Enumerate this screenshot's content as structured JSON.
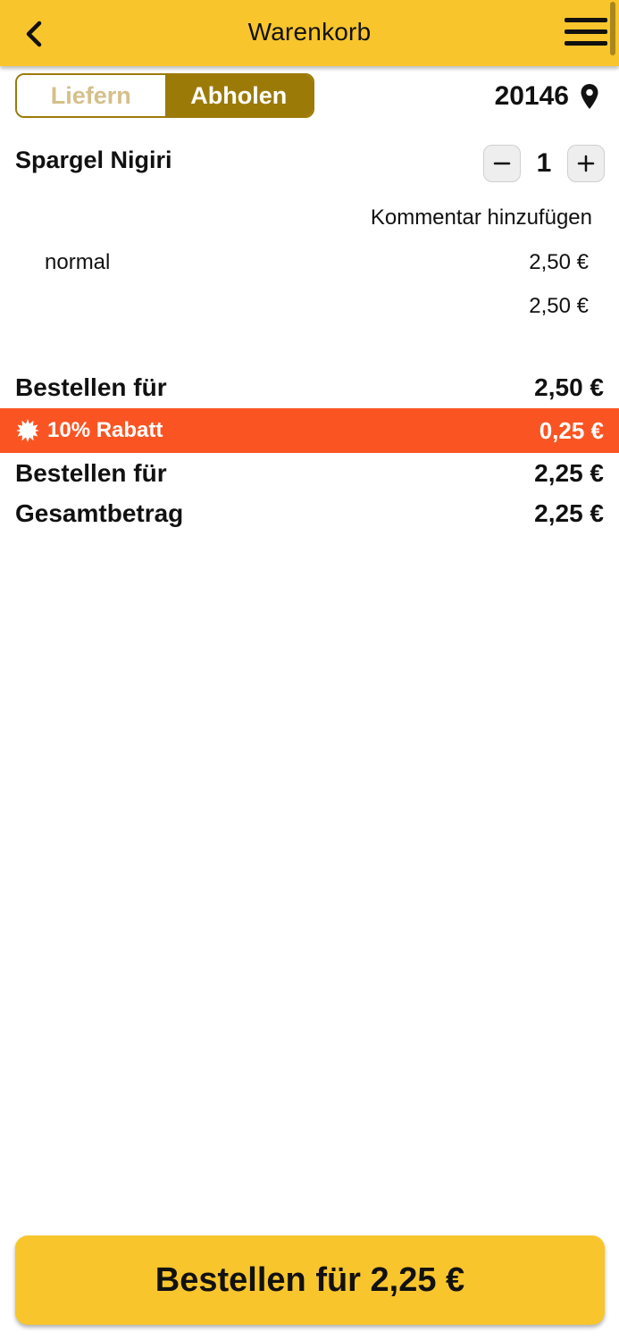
{
  "header": {
    "title": "Warenkorb"
  },
  "mode_toggle": {
    "options": [
      "Liefern",
      "Abholen"
    ],
    "selected": "Abholen"
  },
  "location": {
    "postal_code": "20146"
  },
  "cart": {
    "items": [
      {
        "name": "Spargel Nigiri",
        "quantity": "1",
        "comment_label": "Kommentar hinzufügen",
        "option": {
          "name": "normal",
          "price": "2,50 €"
        },
        "total": "2,50 €"
      }
    ]
  },
  "summary": {
    "subtotal_label": "Bestellen für",
    "subtotal_value": "2,50 €",
    "discount_label": "10% Rabatt",
    "discount_value": "0,25 €",
    "after_discount_label": "Bestellen für",
    "after_discount_value": "2,25 €",
    "total_label": "Gesamtbetrag",
    "total_value": "2,25 €"
  },
  "order_button": {
    "label": "Bestellen für 2,25 €"
  },
  "colors": {
    "header": "#f8c52c",
    "toggle_active": "#9c7a08",
    "discount_bar": "#fb5423"
  }
}
